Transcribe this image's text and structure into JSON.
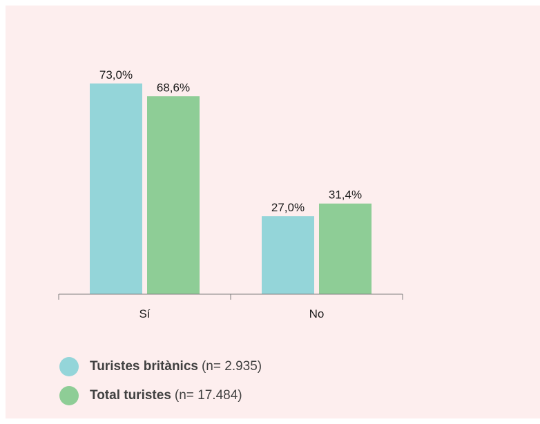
{
  "chart_data": {
    "type": "bar",
    "categories": [
      "Sí",
      "No"
    ],
    "series": [
      {
        "name": "Turistes britànics",
        "note": "(n= 2.935)",
        "color": "#94d5d9",
        "values": [
          73.0,
          27.0
        ],
        "labels": [
          "73,0%",
          "27,0%"
        ]
      },
      {
        "name": "Total turistes",
        "note": "(n= 17.484)",
        "color": "#8ecd96",
        "values": [
          68.6,
          31.4
        ],
        "labels": [
          "68,6%",
          "31,4%"
        ]
      }
    ],
    "ylim": [
      0,
      100
    ],
    "grid": false,
    "legend_position": "bottom-left",
    "axis_color": "#7f7f7f",
    "label_color": "#1a1a1a"
  }
}
